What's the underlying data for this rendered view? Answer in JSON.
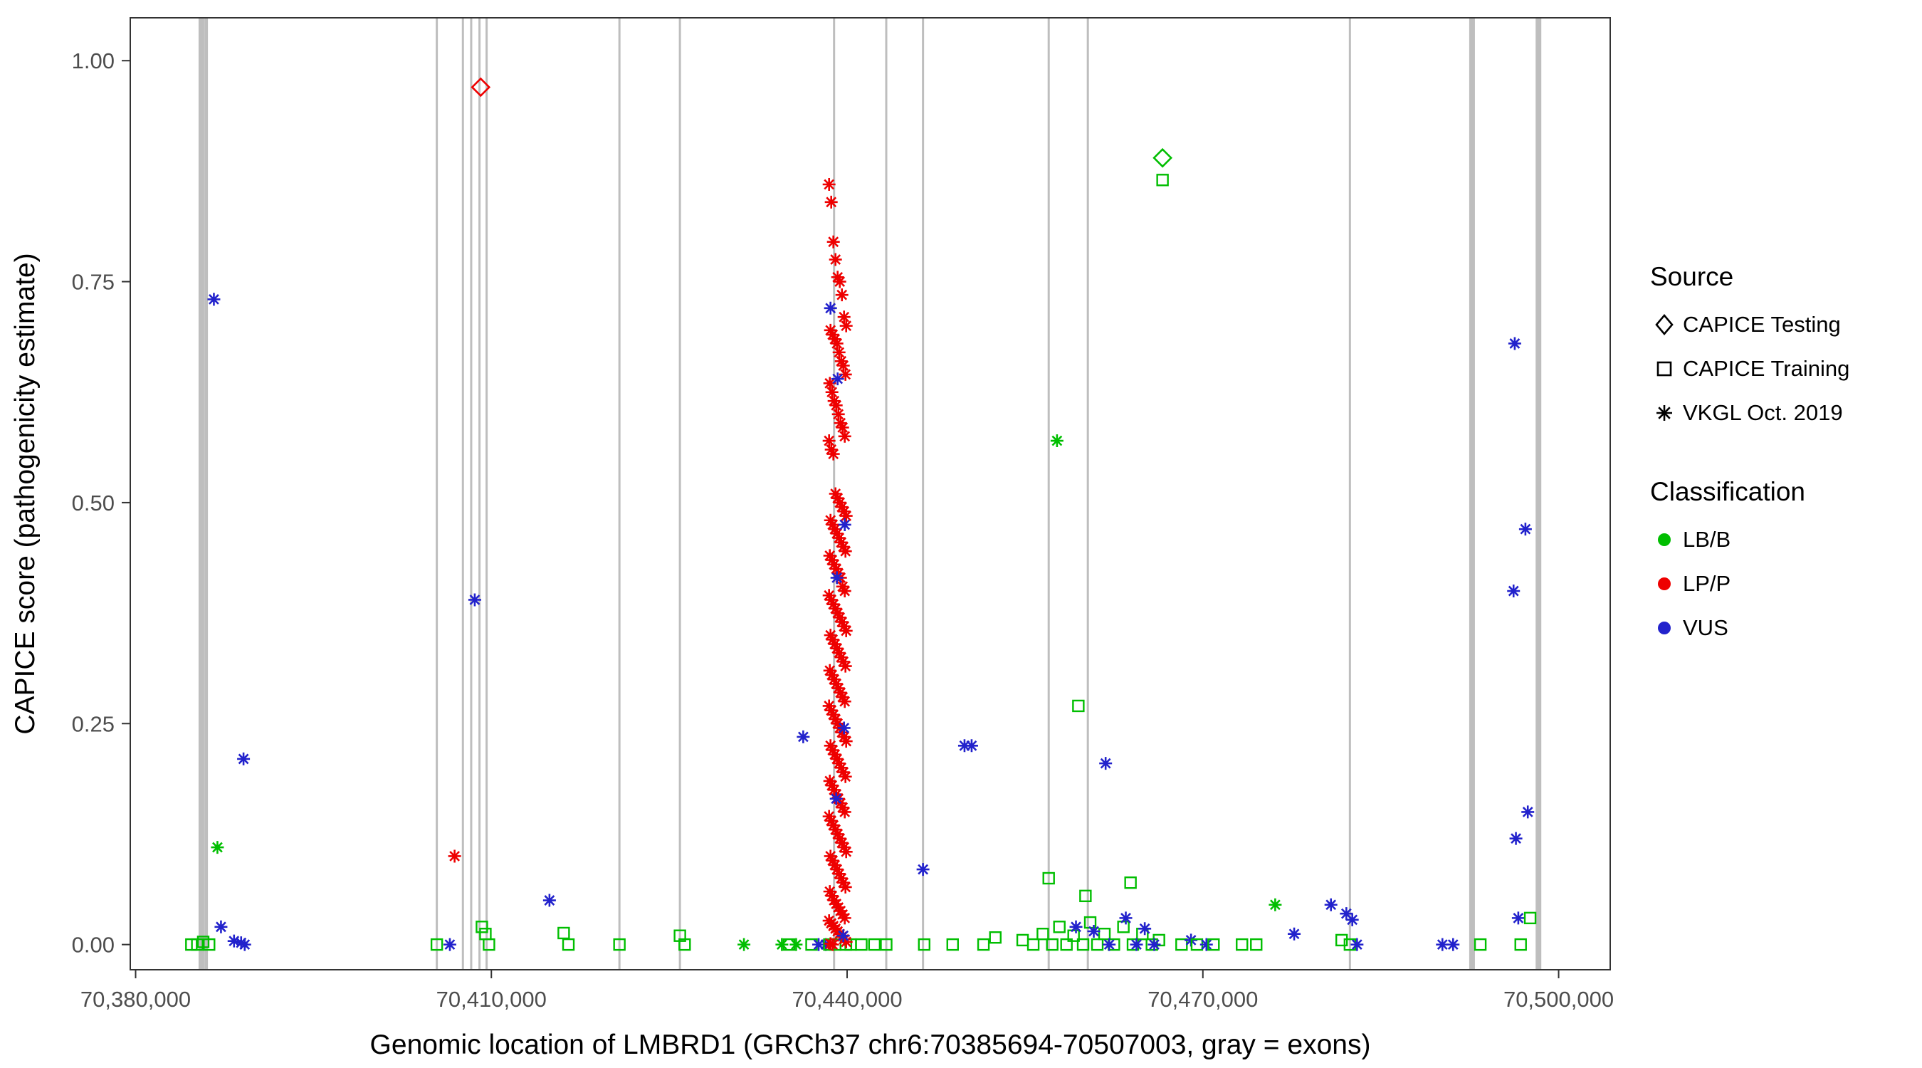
{
  "chart_data": {
    "type": "scatter",
    "title": "",
    "xlabel": "Genomic location of LMBRD1 (GRCh37 chr6:70385694-70507003, gray = exons)",
    "ylabel": "CAPICE score (pathogenicity estimate)",
    "xlim": [
      70379550,
      70504350
    ],
    "ylim": [
      -0.0285,
      1.0485
    ],
    "x_ticks": {
      "values": [
        70380000,
        70410000,
        70440000,
        70470000,
        70500000
      ],
      "labels": [
        "70,380,000",
        "70,410,000",
        "70,440,000",
        "70,470,000",
        "70,500,000"
      ]
    },
    "y_ticks": {
      "values": [
        0,
        0.25,
        0.5,
        0.75,
        1.0
      ],
      "labels": [
        "0.00",
        "0.25",
        "0.50",
        "0.75",
        "1.00"
      ]
    },
    "grid": "off",
    "panel_border_color": "#333333",
    "tick_label_color": "#4d4d4d",
    "exon_color": "#bebebe",
    "class_colors": {
      "g": "#00be00",
      "r": "#ee0000",
      "b": "#2222cc"
    },
    "exons": [
      {
        "x": 70385550,
        "w": 8
      },
      {
        "x": 70385950,
        "w": 5
      },
      {
        "x": 70405400,
        "w": 3
      },
      {
        "x": 70407600,
        "w": 3
      },
      {
        "x": 70408300,
        "w": 3
      },
      {
        "x": 70409000,
        "w": 3
      },
      {
        "x": 70409600,
        "w": 3
      },
      {
        "x": 70420800,
        "w": 3
      },
      {
        "x": 70425900,
        "w": 3
      },
      {
        "x": 70438900,
        "w": 3
      },
      {
        "x": 70443300,
        "w": 3
      },
      {
        "x": 70446400,
        "w": 3
      },
      {
        "x": 70457000,
        "w": 3
      },
      {
        "x": 70460300,
        "w": 3
      },
      {
        "x": 70482400,
        "w": 3
      },
      {
        "x": 70492700,
        "w": 8
      },
      {
        "x": 70498300,
        "w": 8
      }
    ],
    "points": [
      [
        70384700,
        0.0,
        "q",
        "g"
      ],
      [
        70385200,
        0.0,
        "q",
        "g"
      ],
      [
        70385700,
        0.003,
        "q",
        "g"
      ],
      [
        70386200,
        0.0,
        "q",
        "g"
      ],
      [
        70386600,
        0.73,
        "v",
        "b"
      ],
      [
        70386900,
        0.11,
        "v",
        "g"
      ],
      [
        70389100,
        0.21,
        "v",
        "b"
      ],
      [
        70387200,
        0.02,
        "v",
        "b"
      ],
      [
        70388300,
        0.004,
        "v",
        "b"
      ],
      [
        70388900,
        0.002,
        "v",
        "b"
      ],
      [
        70389200,
        0.0,
        "v",
        "b"
      ],
      [
        70405400,
        0.0,
        "q",
        "g"
      ],
      [
        70406500,
        0.0,
        "v",
        "b"
      ],
      [
        70406900,
        0.1,
        "v",
        "r"
      ],
      [
        70408600,
        0.39,
        "v",
        "b"
      ],
      [
        70409100,
        0.97,
        "t",
        "r"
      ],
      [
        70409200,
        0.02,
        "q",
        "g"
      ],
      [
        70409500,
        0.012,
        "q",
        "g"
      ],
      [
        70409800,
        0.0,
        "q",
        "g"
      ],
      [
        70414900,
        0.05,
        "v",
        "b"
      ],
      [
        70416100,
        0.013,
        "q",
        "g"
      ],
      [
        70416500,
        0.0,
        "q",
        "g"
      ],
      [
        70420800,
        0.0,
        "q",
        "g"
      ],
      [
        70425900,
        0.01,
        "q",
        "g"
      ],
      [
        70426300,
        0.0,
        "q",
        "g"
      ],
      [
        70431300,
        0.0,
        "v",
        "g"
      ],
      [
        70434500,
        0.0,
        "v",
        "g"
      ],
      [
        70435100,
        0.0,
        "q",
        "g"
      ],
      [
        70435700,
        0.0,
        "v",
        "g"
      ],
      [
        70436300,
        0.235,
        "v",
        "b"
      ],
      [
        70437000,
        0.0,
        "q",
        "g"
      ],
      [
        70437600,
        0.0,
        "v",
        "b"
      ],
      [
        70438200,
        0.0,
        "v",
        "b"
      ],
      [
        70438500,
        0.0,
        "q",
        "g"
      ],
      [
        70439000,
        0.0,
        "q",
        "g"
      ],
      [
        70439900,
        0.0,
        "q",
        "g"
      ],
      [
        70440300,
        0.0,
        "q",
        "g"
      ],
      [
        70441200,
        0.0,
        "q",
        "g"
      ],
      [
        70442300,
        0.0,
        "q",
        "g"
      ],
      [
        70443300,
        0.0,
        "q",
        "g"
      ],
      [
        70446500,
        0.0,
        "q",
        "g"
      ],
      [
        70446400,
        0.085,
        "v",
        "b"
      ],
      [
        70448900,
        0.0,
        "q",
        "g"
      ],
      [
        70449900,
        0.225,
        "v",
        "b"
      ],
      [
        70450500,
        0.225,
        "v",
        "b"
      ],
      [
        70451500,
        0.0,
        "q",
        "g"
      ],
      [
        70452500,
        0.008,
        "q",
        "g"
      ],
      [
        70457700,
        0.57,
        "v",
        "g"
      ],
      [
        70459500,
        0.27,
        "q",
        "g"
      ],
      [
        70461800,
        0.205,
        "v",
        "b"
      ],
      [
        70457000,
        0.075,
        "q",
        "g"
      ],
      [
        70460100,
        0.055,
        "q",
        "g"
      ],
      [
        70463900,
        0.07,
        "q",
        "g"
      ],
      [
        70454800,
        0.005,
        "q",
        "g"
      ],
      [
        70455700,
        0.0,
        "q",
        "g"
      ],
      [
        70456500,
        0.012,
        "q",
        "g"
      ],
      [
        70457300,
        0.0,
        "q",
        "g"
      ],
      [
        70457900,
        0.02,
        "q",
        "g"
      ],
      [
        70458500,
        0.0,
        "q",
        "g"
      ],
      [
        70459100,
        0.01,
        "q",
        "g"
      ],
      [
        70459900,
        0.0,
        "q",
        "g"
      ],
      [
        70460500,
        0.025,
        "q",
        "g"
      ],
      [
        70461100,
        0.0,
        "q",
        "g"
      ],
      [
        70461700,
        0.012,
        "q",
        "g"
      ],
      [
        70462500,
        0.0,
        "q",
        "g"
      ],
      [
        70463300,
        0.02,
        "q",
        "g"
      ],
      [
        70464100,
        0.0,
        "q",
        "g"
      ],
      [
        70464900,
        0.012,
        "q",
        "g"
      ],
      [
        70465700,
        0.0,
        "q",
        "g"
      ],
      [
        70466300,
        0.005,
        "q",
        "g"
      ],
      [
        70459300,
        0.02,
        "v",
        "b"
      ],
      [
        70460800,
        0.015,
        "v",
        "b"
      ],
      [
        70462100,
        0.0,
        "v",
        "b"
      ],
      [
        70463500,
        0.03,
        "v",
        "b"
      ],
      [
        70464400,
        0.0,
        "v",
        "b"
      ],
      [
        70465100,
        0.018,
        "v",
        "b"
      ],
      [
        70465900,
        0.0,
        "v",
        "b"
      ],
      [
        70466600,
        0.89,
        "t",
        "g"
      ],
      [
        70466600,
        0.865,
        "q",
        "g"
      ],
      [
        70468200,
        0.0,
        "q",
        "g"
      ],
      [
        70469000,
        0.005,
        "v",
        "b"
      ],
      [
        70469500,
        0.0,
        "q",
        "g"
      ],
      [
        70470300,
        0.0,
        "v",
        "b"
      ],
      [
        70470900,
        0.0,
        "q",
        "g"
      ],
      [
        70473300,
        0.0,
        "q",
        "g"
      ],
      [
        70474500,
        0.0,
        "q",
        "g"
      ],
      [
        70476100,
        0.045,
        "v",
        "g"
      ],
      [
        70477700,
        0.012,
        "v",
        "b"
      ],
      [
        70480800,
        0.045,
        "v",
        "b"
      ],
      [
        70482100,
        0.035,
        "v",
        "b"
      ],
      [
        70482600,
        0.028,
        "v",
        "b"
      ],
      [
        70481700,
        0.005,
        "q",
        "g"
      ],
      [
        70482400,
        0.0,
        "q",
        "g"
      ],
      [
        70483000,
        0.0,
        "v",
        "b"
      ],
      [
        70490200,
        0.0,
        "v",
        "b"
      ],
      [
        70491100,
        0.0,
        "v",
        "b"
      ],
      [
        70493400,
        0.0,
        "q",
        "g"
      ],
      [
        70496300,
        0.68,
        "v",
        "b"
      ],
      [
        70497200,
        0.47,
        "v",
        "b"
      ],
      [
        70496200,
        0.4,
        "v",
        "b"
      ],
      [
        70497400,
        0.15,
        "v",
        "b"
      ],
      [
        70496400,
        0.12,
        "v",
        "b"
      ],
      [
        70496600,
        0.03,
        "v",
        "b"
      ],
      [
        70497600,
        0.03,
        "q",
        "g"
      ],
      [
        70496800,
        0.0,
        "q",
        "g"
      ]
    ],
    "cluster": {
      "x": 70439200,
      "red_ys": [
        0.86,
        0.84,
        0.795,
        0.775,
        0.755,
        0.75,
        0.735,
        0.71,
        0.7,
        0.695,
        0.69,
        0.685,
        0.68,
        0.67,
        0.66,
        0.655,
        0.645,
        0.635,
        0.625,
        0.615,
        0.61,
        0.6,
        0.59,
        0.585,
        0.575,
        0.57,
        0.56,
        0.555,
        0.51,
        0.505,
        0.5,
        0.495,
        0.49,
        0.485,
        0.48,
        0.475,
        0.47,
        0.465,
        0.46,
        0.455,
        0.45,
        0.445,
        0.44,
        0.435,
        0.43,
        0.425,
        0.42,
        0.415,
        0.405,
        0.4,
        0.395,
        0.39,
        0.385,
        0.38,
        0.375,
        0.37,
        0.365,
        0.36,
        0.355,
        0.35,
        0.345,
        0.34,
        0.335,
        0.33,
        0.325,
        0.32,
        0.315,
        0.31,
        0.305,
        0.3,
        0.295,
        0.29,
        0.285,
        0.28,
        0.275,
        0.27,
        0.265,
        0.26,
        0.255,
        0.25,
        0.245,
        0.24,
        0.235,
        0.23,
        0.225,
        0.22,
        0.215,
        0.21,
        0.205,
        0.2,
        0.195,
        0.19,
        0.185,
        0.18,
        0.175,
        0.17,
        0.165,
        0.16,
        0.155,
        0.15,
        0.145,
        0.14,
        0.135,
        0.13,
        0.125,
        0.12,
        0.115,
        0.11,
        0.105,
        0.1,
        0.095,
        0.09,
        0.085,
        0.08,
        0.075,
        0.07,
        0.065,
        0.06,
        0.055,
        0.05,
        0.046,
        0.042,
        0.038,
        0.034,
        0.03,
        0.027,
        0.024,
        0.021,
        0.018,
        0.015,
        0.012,
        0.009,
        0.006,
        0.003,
        0.001,
        0.0
      ],
      "blue_ys": [
        0.72,
        0.64,
        0.475,
        0.415,
        0.245,
        0.165,
        0.01
      ]
    },
    "legend": {
      "source": {
        "title": "Source",
        "items": [
          {
            "label": "CAPICE Testing",
            "marker": "diamond"
          },
          {
            "label": "CAPICE Training",
            "marker": "square"
          },
          {
            "label": "VKGL Oct. 2019",
            "marker": "asterisk"
          }
        ]
      },
      "classification": {
        "title": "Classification",
        "items": [
          {
            "label": "LB/B",
            "color": "#00be00"
          },
          {
            "label": "LP/P",
            "color": "#ee0000"
          },
          {
            "label": "VUS",
            "color": "#2222cc"
          }
        ]
      }
    }
  }
}
